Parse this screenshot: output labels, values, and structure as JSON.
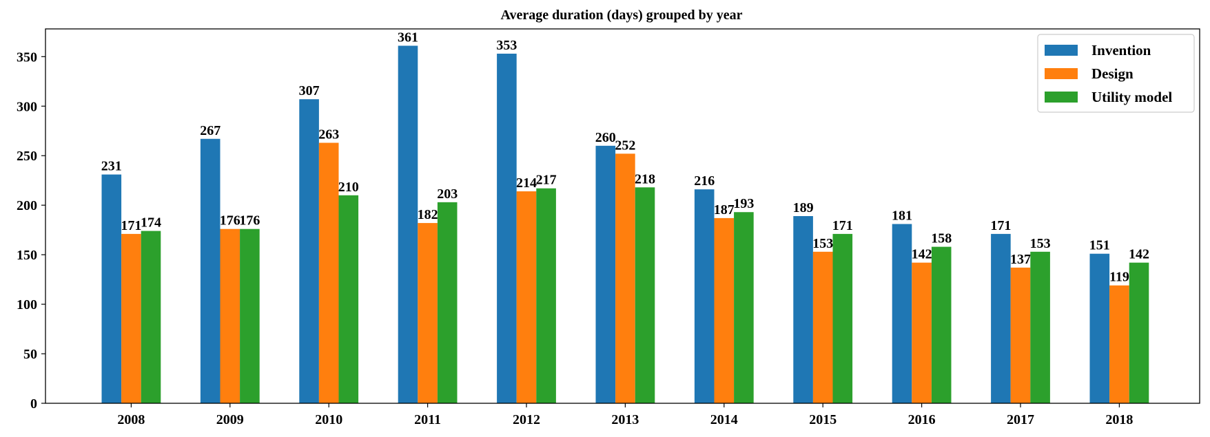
{
  "chart_data": {
    "type": "bar",
    "title": "Average duration (days) grouped by year",
    "xlabel": "",
    "ylabel": "",
    "categories": [
      "2008",
      "2009",
      "2010",
      "2011",
      "2012",
      "2013",
      "2014",
      "2015",
      "2016",
      "2017",
      "2018"
    ],
    "series": [
      {
        "name": "Invention",
        "color": "#1f77b4",
        "values": [
          231,
          267,
          307,
          361,
          353,
          260,
          216,
          189,
          181,
          171,
          151
        ]
      },
      {
        "name": "Design",
        "color": "#ff7f0e",
        "values": [
          171,
          176,
          263,
          182,
          214,
          252,
          187,
          153,
          142,
          137,
          119
        ]
      },
      {
        "name": "Utility model",
        "color": "#2ca02c",
        "values": [
          174,
          176,
          210,
          203,
          217,
          218,
          193,
          171,
          158,
          153,
          142
        ]
      }
    ],
    "ylim": [
      0,
      378
    ],
    "yticks": [
      0,
      50,
      100,
      150,
      200,
      250,
      300,
      350
    ],
    "grid": false,
    "legend_position": "top-right",
    "data_labels": true
  }
}
